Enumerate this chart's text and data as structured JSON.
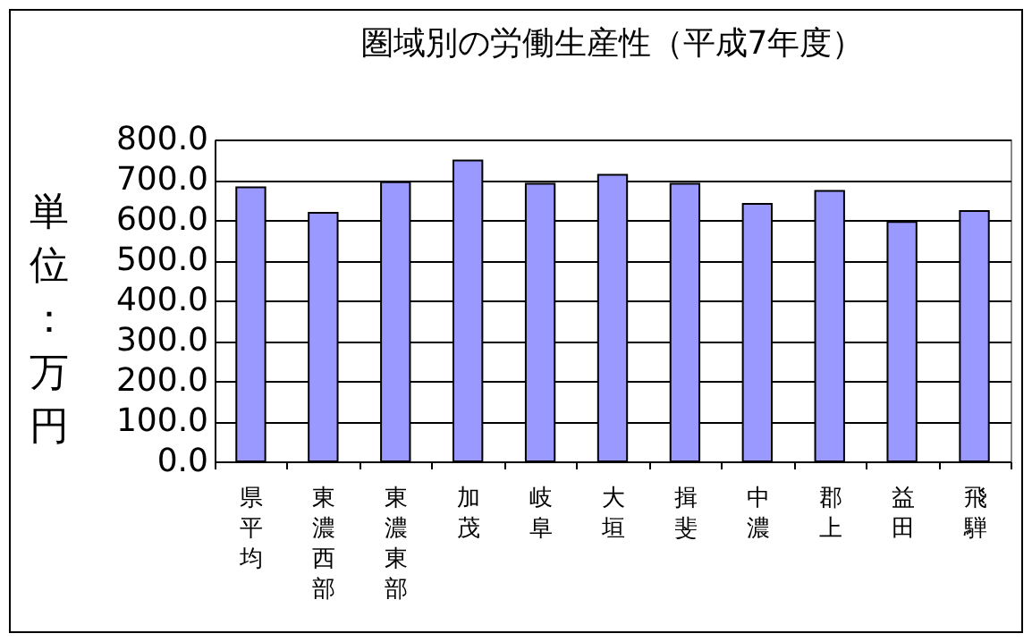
{
  "chart_data": {
    "type": "bar",
    "title": "圏域別の労働生産性（平成7年度）",
    "ylabel": "単位：万円",
    "categories": [
      "県平均",
      "東濃西部",
      "東濃東部",
      "加茂",
      "岐阜",
      "大垣",
      "揖斐",
      "中濃",
      "郡上",
      "益田",
      "飛騨"
    ],
    "values": [
      681,
      618,
      694,
      748,
      690,
      712,
      690,
      640,
      672,
      595,
      622
    ],
    "color": "#9999ff",
    "ylim": [
      0,
      800
    ],
    "yticks": [
      {
        "value": 0,
        "label": "0.0"
      },
      {
        "value": 100,
        "label": "100.0"
      },
      {
        "value": 200,
        "label": "200.0"
      },
      {
        "value": 300,
        "label": "300.0"
      },
      {
        "value": 400,
        "label": "400.0"
      },
      {
        "value": 500,
        "label": "500.0"
      },
      {
        "value": 600,
        "label": "600.0"
      },
      {
        "value": 700,
        "label": "700.0"
      },
      {
        "value": 800,
        "label": "800.0"
      }
    ],
    "grid": "y"
  }
}
